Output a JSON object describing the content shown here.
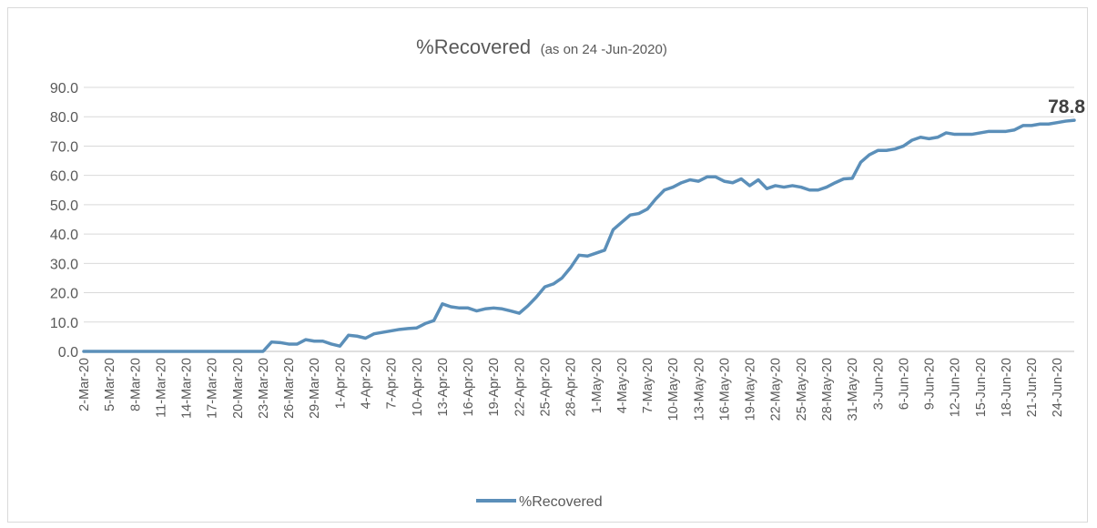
{
  "chart_data": {
    "type": "line",
    "title": "%Recovered",
    "subtitle": "(as on 24 -Jun-2020)",
    "xlabel": "",
    "ylabel": "",
    "ylim": [
      0,
      90
    ],
    "yticks": [
      "0.0",
      "10.0",
      "20.0",
      "30.0",
      "40.0",
      "50.0",
      "60.0",
      "70.0",
      "80.0",
      "90.0"
    ],
    "x_tick_labels": [
      "2-Mar-20",
      "5-Mar-20",
      "8-Mar-20",
      "11-Mar-20",
      "14-Mar-20",
      "17-Mar-20",
      "20-Mar-20",
      "23-Mar-20",
      "26-Mar-20",
      "29-Mar-20",
      "1-Apr-20",
      "4-Apr-20",
      "7-Apr-20",
      "10-Apr-20",
      "13-Apr-20",
      "16-Apr-20",
      "19-Apr-20",
      "22-Apr-20",
      "25-Apr-20",
      "28-Apr-20",
      "1-May-20",
      "4-May-20",
      "7-May-20",
      "10-May-20",
      "13-May-20",
      "16-May-20",
      "19-May-20",
      "22-May-20",
      "25-May-20",
      "28-May-20",
      "31-May-20",
      "3-Jun-20",
      "6-Jun-20",
      "9-Jun-20",
      "12-Jun-20",
      "15-Jun-20",
      "18-Jun-20",
      "21-Jun-20",
      "24-Jun-20"
    ],
    "grid": true,
    "legend_position": "bottom",
    "last_value_label": "78.8",
    "series": [
      {
        "name": "%Recovered",
        "color": "#5b8fb9",
        "x_start": "2-Mar-20",
        "values": [
          0,
          0,
          0,
          0,
          0,
          0,
          0,
          0,
          0,
          0,
          0,
          0,
          0,
          0,
          0,
          0,
          0,
          0,
          0,
          0,
          0,
          0,
          3.2,
          3.0,
          2.5,
          2.5,
          4.0,
          3.5,
          3.5,
          2.5,
          1.8,
          5.5,
          5.2,
          4.5,
          6.0,
          6.5,
          7.0,
          7.5,
          7.8,
          8.0,
          9.5,
          10.5,
          16.2,
          15.2,
          14.8,
          14.8,
          13.8,
          14.5,
          14.8,
          14.5,
          13.8,
          13.0,
          15.5,
          18.5,
          22.0,
          23.0,
          25.0,
          28.5,
          32.8,
          32.5,
          33.5,
          34.5,
          41.5,
          44.0,
          46.5,
          47.0,
          48.5,
          52.0,
          55.0,
          56.0,
          57.5,
          58.5,
          58.0,
          59.5,
          59.5,
          58.0,
          57.5,
          58.8,
          56.5,
          58.5,
          55.5,
          56.5,
          56.0,
          56.5,
          56.0,
          55.0,
          55.0,
          56.0,
          57.5,
          58.8,
          59.0,
          64.5,
          67.0,
          68.5,
          68.5,
          69.0,
          70.0,
          72.0,
          73.0,
          72.5,
          73.0,
          74.5,
          74.0,
          74.0,
          74.0,
          74.5,
          75.0,
          75.0,
          75.0,
          75.5,
          77.0,
          77.0,
          77.5,
          77.5,
          78.0,
          78.5,
          78.8
        ]
      }
    ]
  }
}
